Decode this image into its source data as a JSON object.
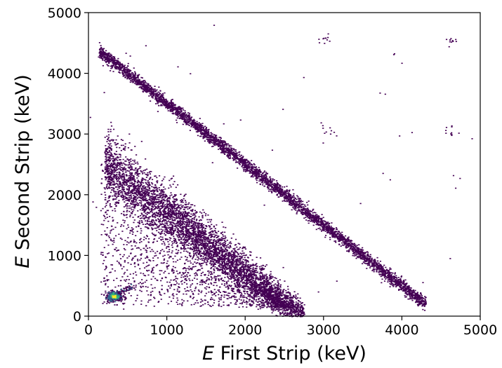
{
  "chart_data": {
    "type": "heatmap",
    "xlabel": {
      "var": "E",
      "text": " First Strip (keV)"
    },
    "ylabel": {
      "var": "E",
      "text": " Second Strip (keV)"
    },
    "xlim": [
      0,
      5000
    ],
    "ylim": [
      0,
      5000
    ],
    "xticks": [
      0,
      1000,
      2000,
      3000,
      4000,
      5000
    ],
    "yticks": [
      0,
      1000,
      2000,
      3000,
      4000,
      5000
    ],
    "xtick_labels": [
      "0",
      "1000",
      "2000",
      "3000",
      "4000",
      "5000"
    ],
    "ytick_labels": [
      "0",
      "1000",
      "2000",
      "3000",
      "4000",
      "5000"
    ],
    "grid": false,
    "colormap": "viridis",
    "colors": {
      "low": "#440154",
      "mid": "#31688e",
      "high": "#35b779",
      "peak": "#fde725"
    },
    "features": [
      {
        "kind": "diagonal-band",
        "sum_keV": 4500,
        "x_range": [
          130,
          4300
        ],
        "width_keV": 90,
        "density": "high"
      },
      {
        "kind": "diagonal-band",
        "sum_keV": 2800,
        "x_range": [
          200,
          2750
        ],
        "width_keV": 260,
        "density": "medium"
      },
      {
        "kind": "scatter-fill",
        "region": "below-lower-band",
        "x_range": [
          150,
          2600
        ],
        "density": "low"
      },
      {
        "kind": "hotspot",
        "x": 320,
        "y": 330,
        "peak_value": "high"
      },
      {
        "kind": "short-line",
        "from": [
          330,
          340
        ],
        "to": [
          560,
          520
        ]
      },
      {
        "kind": "cluster",
        "x": 3050,
        "y": 3080
      },
      {
        "kind": "cluster",
        "x": 4620,
        "y": 3050
      },
      {
        "kind": "cluster",
        "x": 3000,
        "y": 4580
      },
      {
        "kind": "cluster",
        "x": 4620,
        "y": 4580
      }
    ]
  }
}
